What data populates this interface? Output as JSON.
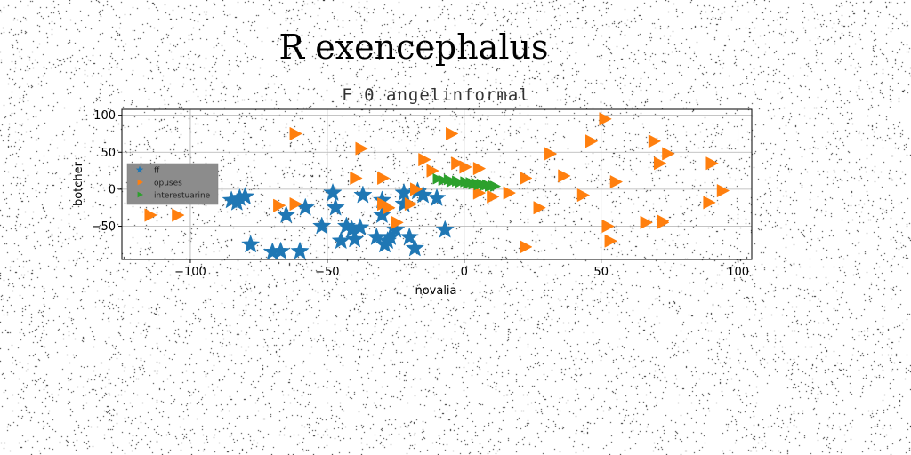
{
  "chart_data": {
    "type": "scatter",
    "suptitle": "R exencephalus",
    "title": "F 0 angelinformal",
    "xlabel": "novalia",
    "ylabel": "botcher",
    "xlim": [
      -125,
      105
    ],
    "ylim": [
      -95,
      108
    ],
    "xticks": [
      -100,
      -50,
      0,
      50,
      100
    ],
    "yticks": [
      -50,
      0,
      50,
      100
    ],
    "grid": true,
    "legend": "upper-left",
    "series": [
      {
        "name": "ff",
        "marker": "star",
        "color": "#1f77b4",
        "points": [
          [
            -85,
            -15
          ],
          [
            -83,
            -18
          ],
          [
            -82,
            -12
          ],
          [
            -80,
            -10
          ],
          [
            -78,
            -75
          ],
          [
            -70,
            -85
          ],
          [
            -67,
            -84
          ],
          [
            -65,
            -35
          ],
          [
            -60,
            -84
          ],
          [
            -58,
            -25
          ],
          [
            -52,
            -50
          ],
          [
            -48,
            -5
          ],
          [
            -47,
            -25
          ],
          [
            -45,
            -70
          ],
          [
            -43,
            -50
          ],
          [
            -41,
            -55
          ],
          [
            -40,
            -68
          ],
          [
            -38,
            -52
          ],
          [
            -37,
            -8
          ],
          [
            -32,
            -65
          ],
          [
            -30,
            -15
          ],
          [
            -30,
            -35
          ],
          [
            -29,
            -75
          ],
          [
            -28,
            -70
          ],
          [
            -27,
            -65
          ],
          [
            -25,
            -55
          ],
          [
            -22,
            -5
          ],
          [
            -22,
            -20
          ],
          [
            -20,
            -65
          ],
          [
            -18,
            -80
          ],
          [
            -17,
            -3
          ],
          [
            -15,
            -8
          ],
          [
            -10,
            -12
          ],
          [
            -7,
            -55
          ]
        ]
      },
      {
        "name": "opuses",
        "marker": "triangle-right",
        "color": "#ff7f0e",
        "points": [
          [
            -115,
            -35
          ],
          [
            -105,
            -35
          ],
          [
            -62,
            75
          ],
          [
            -62,
            -20
          ],
          [
            -68,
            -22
          ],
          [
            -40,
            15
          ],
          [
            -38,
            55
          ],
          [
            -30,
            15
          ],
          [
            -30,
            -20
          ],
          [
            -28,
            -25
          ],
          [
            -25,
            -45
          ],
          [
            -20,
            -20
          ],
          [
            -18,
            0
          ],
          [
            -15,
            40
          ],
          [
            -12,
            25
          ],
          [
            -5,
            75
          ],
          [
            -3,
            35
          ],
          [
            0,
            30
          ],
          [
            5,
            28
          ],
          [
            5,
            -5
          ],
          [
            10,
            -10
          ],
          [
            16,
            -5
          ],
          [
            22,
            15
          ],
          [
            22,
            -78
          ],
          [
            27,
            -25
          ],
          [
            31,
            48
          ],
          [
            36,
            18
          ],
          [
            43,
            -8
          ],
          [
            46,
            65
          ],
          [
            51,
            95
          ],
          [
            52,
            -50
          ],
          [
            53,
            -70
          ],
          [
            55,
            10
          ],
          [
            66,
            -45
          ],
          [
            69,
            65
          ],
          [
            71,
            35
          ],
          [
            72,
            -45
          ],
          [
            72,
            -43
          ],
          [
            74,
            48
          ],
          [
            89,
            -18
          ],
          [
            90,
            35
          ],
          [
            94,
            -2
          ]
        ]
      },
      {
        "name": "interestuarine",
        "marker": "triangle-right",
        "color": "#2ca02c",
        "points": [
          [
            -10,
            14
          ],
          [
            -8,
            12
          ],
          [
            -6,
            13
          ],
          [
            -5,
            10
          ],
          [
            -3,
            11
          ],
          [
            -2,
            9
          ],
          [
            0,
            10
          ],
          [
            1,
            8
          ],
          [
            2,
            9
          ],
          [
            3,
            7
          ],
          [
            4,
            8
          ],
          [
            5,
            6
          ],
          [
            6,
            7
          ],
          [
            7,
            5
          ],
          [
            8,
            6
          ],
          [
            9,
            4
          ],
          [
            10,
            5
          ],
          [
            11,
            4
          ]
        ]
      }
    ]
  }
}
